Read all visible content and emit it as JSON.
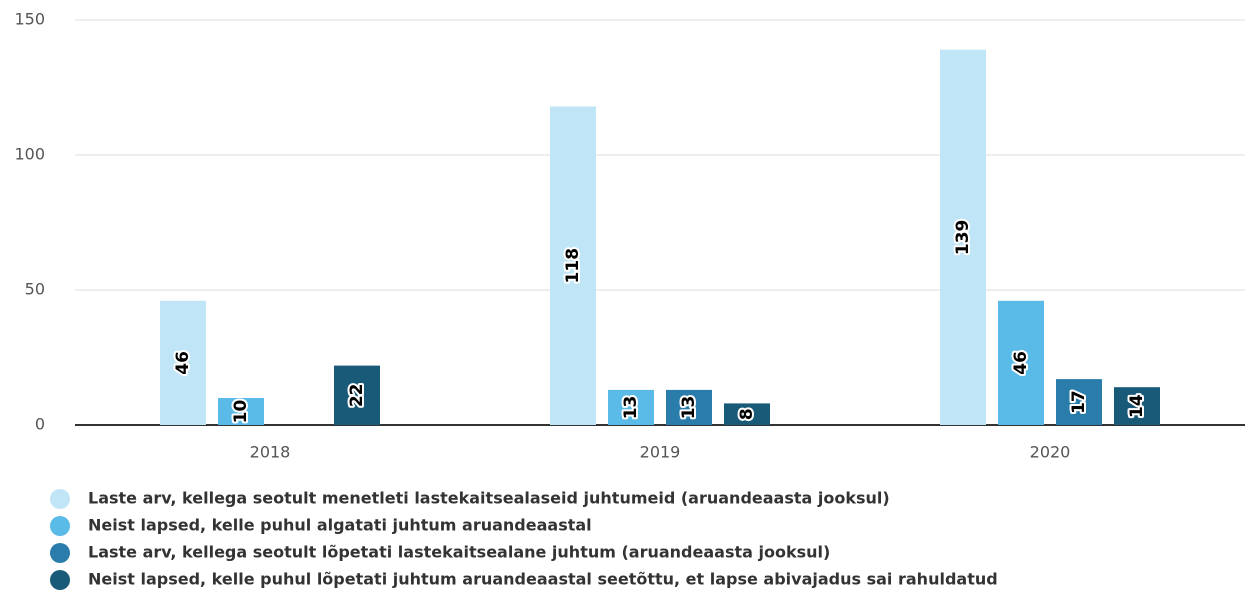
{
  "chart_data": {
    "type": "bar",
    "categories": [
      "2018",
      "2019",
      "2020"
    ],
    "series": [
      {
        "name": "Laste arv, kellega seotult menetleti lastekaitsealaseid juhtumeid (aruandeaasta jooksul)",
        "color": "#c0e5f6",
        "values": [
          46,
          118,
          139
        ]
      },
      {
        "name": "Neist lapsed, kelle puhul algatati juhtum aruandeaastal",
        "color": "#5bbbe8",
        "values": [
          10,
          13,
          46
        ]
      },
      {
        "name": "Laste arv, kellega seotult lõpetati lastekaitsealane juhtum (aruandeaasta jooksul)",
        "color": "#2a7dab",
        "values": [
          null,
          13,
          17
        ]
      },
      {
        "name": "Neist lapsed, kelle puhul lõpetati juhtum aruandeaastal seetõttu, et lapse abivajadus sai rahuldatud",
        "color": "#195a79",
        "values": [
          22,
          8,
          14
        ]
      }
    ],
    "ylim": [
      0,
      150
    ],
    "yticks": [
      0,
      50,
      100,
      150
    ],
    "grid": true
  }
}
